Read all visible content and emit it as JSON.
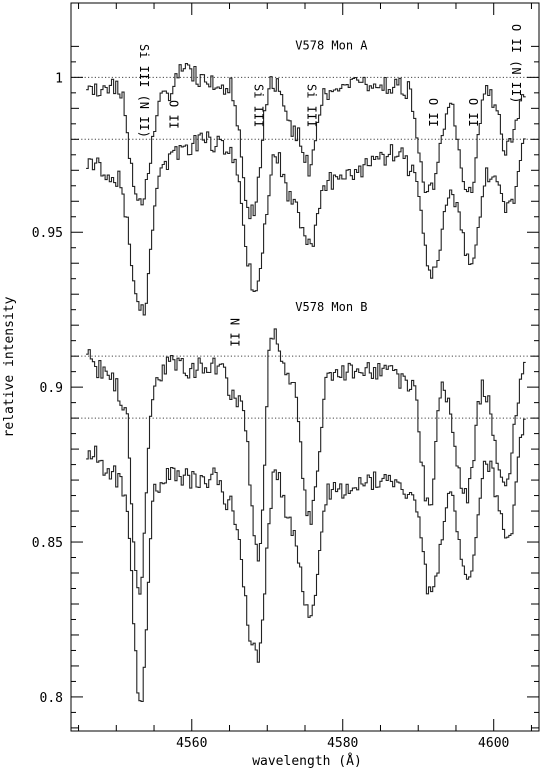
{
  "chart_data": {
    "type": "line",
    "xlabel": "wavelength (Å)",
    "ylabel": "relative intensity",
    "xlim": [
      4544,
      4606
    ],
    "ylim": [
      0.789,
      1.024
    ],
    "x_ticks": [
      4560,
      4580,
      4600
    ],
    "y_ticks": [
      0.8,
      0.85,
      0.9,
      0.95,
      1
    ],
    "x_tick_labels": [
      "4560",
      "4580",
      "4600"
    ],
    "y_tick_labels": [
      "0.8",
      "0.85",
      "0.9",
      "0.95",
      "1"
    ],
    "grid": false,
    "continuum_levels": [
      1.0,
      0.98,
      0.91,
      0.89
    ],
    "star_labels": [
      {
        "text": "V578 Mon A",
        "x": 4578.5,
        "y": 1.009
      },
      {
        "text": "V578 Mon B",
        "x": 4578.5,
        "y": 0.9245
      }
    ],
    "line_ids": [
      {
        "text": "Si III (N II)",
        "x": 4552.6
      },
      {
        "text": "O II",
        "x": 4556.5
      },
      {
        "text": "Si III",
        "x": 4567.8
      },
      {
        "text": "Si III",
        "x": 4574.8
      },
      {
        "text": "O II",
        "x": 4590.9
      },
      {
        "text": "O II",
        "x": 4596.2
      },
      {
        "text": "O II (N II)",
        "x": 4601.9
      },
      {
        "text": "N II",
        "x": 4564.6
      }
    ],
    "series": [
      {
        "x": [
          4546,
          4550,
          4553,
          4556,
          4559,
          4562,
          4565,
          4567.7,
          4570.5,
          4574,
          4575.5,
          4577.5,
          4580,
          4583,
          4586,
          4588.5,
          4591.2,
          4594,
          4596.6,
          4599,
          4601.8,
          4604
        ],
        "y": [
          0.995,
          0.998,
          0.958,
          0.994,
          1.002,
          0.998,
          0.997,
          0.956,
          0.998,
          0.981,
          0.971,
          0.994,
          0.996,
          0.998,
          0.998,
          0.996,
          0.962,
          0.99,
          0.962,
          0.997,
          0.977,
          0.995
        ]
      },
      {
        "x": [
          4546,
          4550,
          4553.2,
          4556,
          4559,
          4562,
          4565,
          4568.3,
          4571,
          4573,
          4575.3,
          4578,
          4581,
          4584,
          4587,
          4589,
          4591.8,
          4594,
          4596.9,
          4599,
          4602.2,
          4604
        ],
        "y": [
          0.972,
          0.968,
          0.924,
          0.972,
          0.978,
          0.98,
          0.975,
          0.932,
          0.975,
          0.962,
          0.945,
          0.967,
          0.969,
          0.972,
          0.976,
          0.97,
          0.937,
          0.962,
          0.942,
          0.968,
          0.958,
          0.977
        ]
      },
      {
        "x": [
          4546,
          4549,
          4551,
          4552.8,
          4555,
          4557,
          4560,
          4563,
          4566.5,
          4568.7,
          4570.5,
          4573,
          4575.5,
          4578,
          4582,
          4586,
          4589,
          4591.4,
          4593,
          4596.2,
          4598.5,
          4601.3,
          4604
        ],
        "y": [
          0.909,
          0.903,
          0.895,
          0.832,
          0.902,
          0.908,
          0.906,
          0.907,
          0.894,
          0.846,
          0.918,
          0.903,
          0.857,
          0.904,
          0.906,
          0.905,
          0.9,
          0.86,
          0.9,
          0.864,
          0.9,
          0.868,
          0.907
        ]
      },
      {
        "x": [
          4546,
          4549,
          4551,
          4553.1,
          4555,
          4557,
          4560,
          4563,
          4565,
          4568.5,
          4571,
          4573,
          4575.5,
          4578,
          4582,
          4586,
          4589,
          4591.7,
          4594,
          4596.5,
          4599,
          4601.8,
          4604
        ],
        "y": [
          0.88,
          0.873,
          0.867,
          0.797,
          0.867,
          0.873,
          0.87,
          0.871,
          0.862,
          0.813,
          0.873,
          0.855,
          0.826,
          0.866,
          0.869,
          0.871,
          0.866,
          0.832,
          0.866,
          0.836,
          0.875,
          0.851,
          0.888
        ]
      }
    ]
  }
}
